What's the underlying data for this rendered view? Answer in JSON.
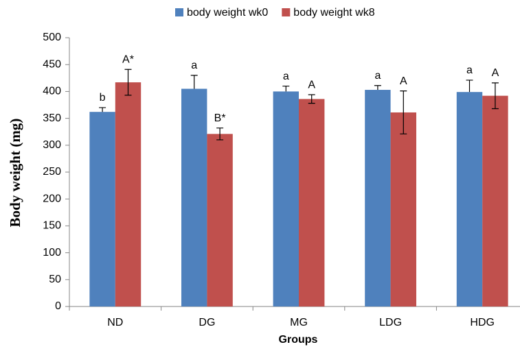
{
  "chart_data": {
    "type": "bar",
    "ylabel": "Body weight (mg)",
    "xlabel": "Groups",
    "categories": [
      "ND",
      "DG",
      "MG",
      "LDG",
      "HDG"
    ],
    "series": [
      {
        "name": "body weight wk0",
        "color": "#4f81bd",
        "values": [
          362,
          405,
          400,
          403,
          399
        ],
        "errors": [
          8,
          25,
          10,
          8,
          22
        ],
        "error_direction": "plus",
        "labels": [
          "b",
          "a",
          "a",
          "a",
          "a"
        ]
      },
      {
        "name": "body weight wk8",
        "color": "#c0504d",
        "values": [
          417,
          321,
          386,
          361,
          392
        ],
        "errors": [
          24,
          11,
          8,
          40,
          24
        ],
        "error_direction": "both",
        "labels": [
          "A*",
          "B*",
          "A",
          "A",
          "A"
        ]
      }
    ],
    "ylim": [
      0,
      500
    ],
    "yticks": [
      0,
      50,
      100,
      150,
      200,
      250,
      300,
      350,
      400,
      450,
      500
    ],
    "grid": false,
    "legend": "top"
  }
}
